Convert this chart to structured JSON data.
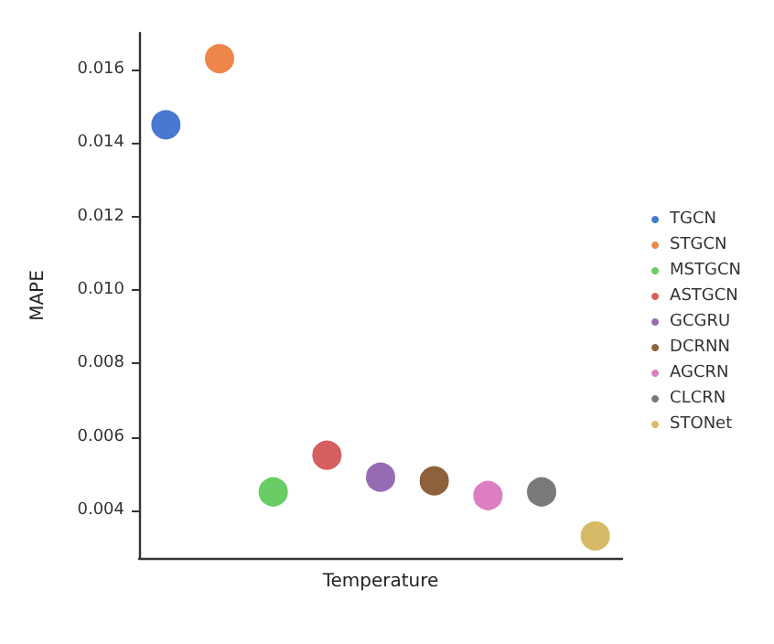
{
  "chart_data": {
    "type": "scatter",
    "xlabel": "Temperature",
    "ylabel": "MAPE",
    "categories": [
      null,
      null,
      null,
      null,
      null,
      null,
      null,
      null,
      null
    ],
    "ylim": [
      0.0027,
      0.017
    ],
    "yticks": [
      {
        "value": 0.004,
        "label": "0.004"
      },
      {
        "value": 0.006,
        "label": "0.006"
      },
      {
        "value": 0.008,
        "label": "0.008"
      },
      {
        "value": 0.01,
        "label": "0.010"
      },
      {
        "value": 0.012,
        "label": "0.012"
      },
      {
        "value": 0.014,
        "label": "0.014"
      },
      {
        "value": 0.016,
        "label": "0.016"
      }
    ],
    "series": [
      {
        "name": "TGCN",
        "color": "#4878d0",
        "values": [
          0.0145,
          null,
          null,
          null,
          null,
          null,
          null,
          null,
          null
        ]
      },
      {
        "name": "STGCN",
        "color": "#ee854a",
        "values": [
          null,
          0.0163,
          null,
          null,
          null,
          null,
          null,
          null,
          null
        ]
      },
      {
        "name": "MSTGCN",
        "color": "#6acc64",
        "values": [
          null,
          null,
          0.0045,
          null,
          null,
          null,
          null,
          null,
          null
        ]
      },
      {
        "name": "ASTGCN",
        "color": "#d65f5f",
        "values": [
          null,
          null,
          null,
          0.0055,
          null,
          null,
          null,
          null,
          null
        ]
      },
      {
        "name": "GCGRU",
        "color": "#956cb4",
        "values": [
          null,
          null,
          null,
          null,
          0.0049,
          null,
          null,
          null,
          null
        ]
      },
      {
        "name": "DCRNN",
        "color": "#8c613c",
        "values": [
          null,
          null,
          null,
          null,
          null,
          0.0048,
          null,
          null,
          null
        ]
      },
      {
        "name": "AGCRN",
        "color": "#dc7ec0",
        "values": [
          null,
          null,
          null,
          null,
          null,
          null,
          0.0044,
          null,
          null
        ]
      },
      {
        "name": "CLCRN",
        "color": "#797979",
        "values": [
          null,
          null,
          null,
          null,
          null,
          null,
          null,
          0.0045,
          null
        ]
      },
      {
        "name": "STONet",
        "color": "#d5bb67",
        "values": [
          null,
          null,
          null,
          null,
          null,
          null,
          null,
          null,
          0.0033
        ]
      }
    ],
    "legend": "right",
    "grid": false,
    "marker": "circle",
    "tick_labels": "y"
  }
}
